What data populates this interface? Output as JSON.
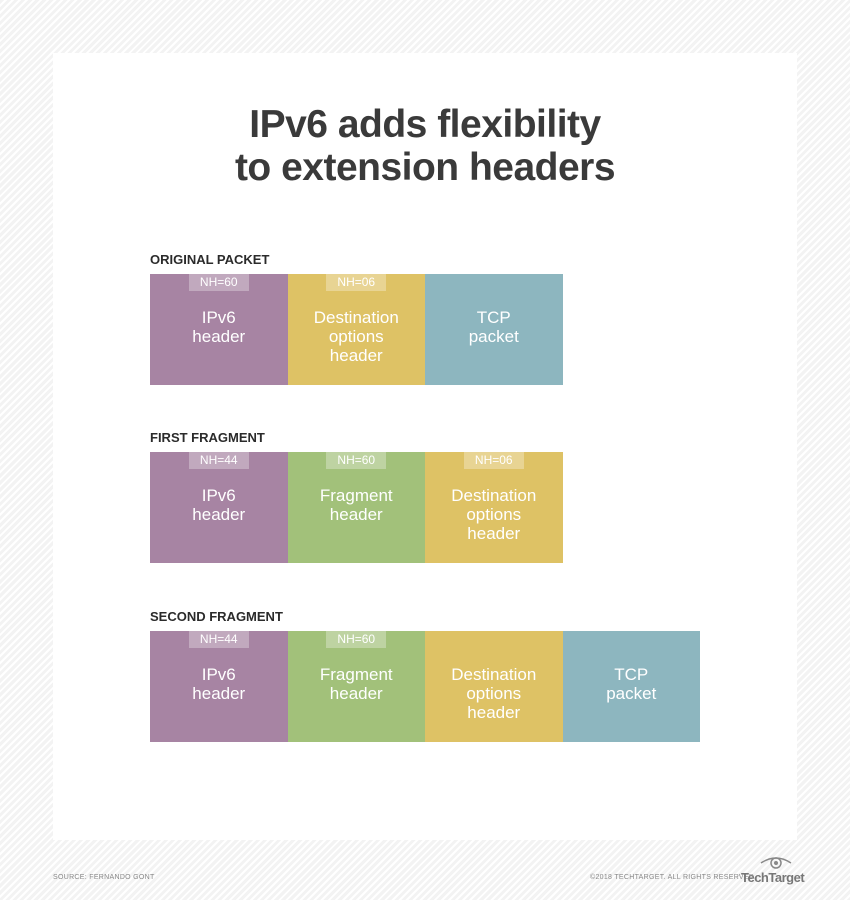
{
  "title_line1": "IPv6 adds flexibility",
  "title_line2": "to extension headers",
  "colors": {
    "ipv6": "#a784a3",
    "destination": "#dec265",
    "tcp": "#8db6bf",
    "fragment": "#a2c17a"
  },
  "rows": [
    {
      "label": "ORIGINAL PACKET",
      "boxes": [
        {
          "nh": "NH=60",
          "l1": "IPv6",
          "l2": "header",
          "l3": ""
        },
        {
          "nh": "NH=06",
          "l1": "Destination",
          "l2": "options",
          "l3": "header"
        },
        {
          "nh": "",
          "l1": "TCP",
          "l2": "packet",
          "l3": ""
        }
      ]
    },
    {
      "label": "FIRST FRAGMENT",
      "boxes": [
        {
          "nh": "NH=44",
          "l1": "IPv6",
          "l2": "header",
          "l3": ""
        },
        {
          "nh": "NH=60",
          "l1": "Fragment",
          "l2": "header",
          "l3": ""
        },
        {
          "nh": "NH=06",
          "l1": "Destination",
          "l2": "options",
          "l3": "header"
        }
      ]
    },
    {
      "label": "SECOND FRAGMENT",
      "boxes": [
        {
          "nh": "NH=44",
          "l1": "IPv6",
          "l2": "header",
          "l3": ""
        },
        {
          "nh": "NH=60",
          "l1": "Fragment",
          "l2": "header",
          "l3": ""
        },
        {
          "nh": "",
          "l1": "Destination",
          "l2": "options",
          "l3": "header"
        },
        {
          "nh": "",
          "l1": "TCP",
          "l2": "packet",
          "l3": ""
        }
      ]
    }
  ],
  "footer": {
    "source": "SOURCE: FERNANDO GONT",
    "copyright": "©2018 TECHTARGET. ALL RIGHTS RESERVED",
    "logo": "TechTarget"
  }
}
